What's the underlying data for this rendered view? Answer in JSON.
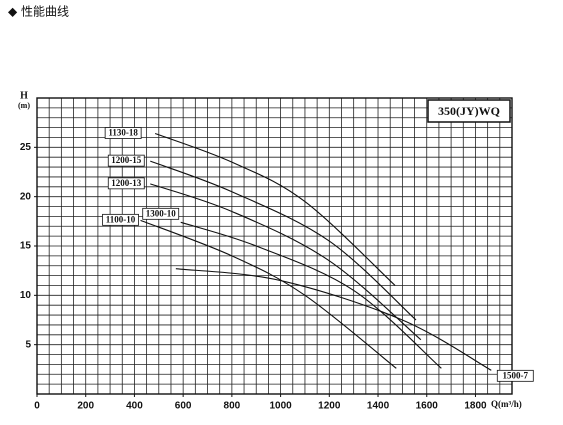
{
  "chart_data": {
    "type": "line",
    "title": "◆ 性能曲线",
    "model": "350(JY)WQ",
    "y_label": "H",
    "y_unit": "(m)",
    "x_label": "Q(m³/h)",
    "xlim": [
      0,
      1950
    ],
    "ylim": [
      0,
      30
    ],
    "xticks": [
      0,
      200,
      400,
      600,
      800,
      1000,
      1200,
      1400,
      1600,
      1800
    ],
    "yticks": [
      5,
      10,
      15,
      20,
      25
    ],
    "grid": true,
    "series": [
      {
        "name": "1130-18",
        "color": "#111111",
        "x": [
          485,
          800,
          1100,
          1470
        ],
        "values": [
          26.4,
          23.5,
          19.5,
          11
        ]
      },
      {
        "name": "1200-15",
        "color": "#111111",
        "x": [
          465,
          800,
          1200,
          1556
        ],
        "values": [
          23.6,
          20.5,
          15.5,
          7.5
        ]
      },
      {
        "name": "1200-13",
        "color": "#111111",
        "x": [
          465,
          800,
          1200,
          1576
        ],
        "values": [
          21.3,
          18.5,
          13.5,
          5.5
        ]
      },
      {
        "name": "1300-10",
        "color": "#111111",
        "x": [
          590,
          900,
          1300,
          1660
        ],
        "values": [
          17.4,
          15,
          10.5,
          2.6
        ]
      },
      {
        "name": "1100-10",
        "color": "#111111",
        "x": [
          425,
          800,
          1100,
          1475
        ],
        "values": [
          17.6,
          14,
          10,
          2.6
        ]
      },
      {
        "name": "1500-7",
        "color": "#111111",
        "x": [
          570,
          1000,
          1500,
          1865
        ],
        "values": [
          12.7,
          11.5,
          7.5,
          2.4
        ]
      }
    ]
  }
}
